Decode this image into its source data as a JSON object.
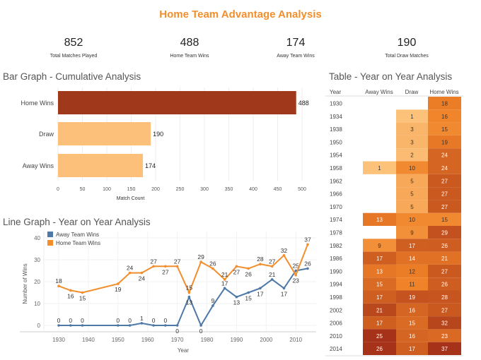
{
  "title": "Home Team Advantage Analysis",
  "kpis": [
    {
      "value": "852",
      "label": "Total Matches Played"
    },
    {
      "value": "488",
      "label": "Home Team Wins"
    },
    {
      "value": "174",
      "label": "Away Team Wins"
    },
    {
      "value": "190",
      "label": "Total Draw Matches"
    }
  ],
  "sections": {
    "bar": "Bar Graph - Cumulative Analysis",
    "table": "Table - Year on Year Analysis",
    "line": "Line Graph - Year on Year Analysis"
  },
  "colors": {
    "accent": "#f28e2b",
    "home_bar": "#a0381b",
    "light_bar": "#fdc07a",
    "away_line": "#4e79a7",
    "home_line": "#f28e2b"
  },
  "chart_data": [
    {
      "type": "bar",
      "orientation": "horizontal",
      "categories": [
        "Home Wins",
        "Draw",
        "Away Wins"
      ],
      "values": [
        488,
        190,
        174
      ],
      "xlabel": "Match Count",
      "xlim": [
        0,
        500
      ],
      "xticks": [
        0,
        50,
        100,
        150,
        200,
        250,
        300,
        350,
        400,
        450,
        500
      ],
      "grid": true
    },
    {
      "type": "line",
      "x": [
        1930,
        1934,
        1938,
        1950,
        1954,
        1958,
        1962,
        1966,
        1970,
        1974,
        1978,
        1982,
        1986,
        1990,
        1994,
        1998,
        2002,
        2006,
        2010,
        2014
      ],
      "series": [
        {
          "name": "Away Team Wins",
          "values": [
            0,
            0,
            0,
            0,
            0,
            1,
            0,
            0,
            0,
            13,
            0,
            9,
            17,
            13,
            15,
            17,
            21,
            17,
            25,
            26
          ]
        },
        {
          "name": "Home Team Wins",
          "values": [
            18,
            16,
            15,
            19,
            24,
            24,
            27,
            27,
            27,
            15,
            29,
            26,
            21,
            27,
            26,
            28,
            27,
            32,
            23,
            37
          ]
        }
      ],
      "xlabel": "Year",
      "ylabel": "Number of Wins",
      "xticks": [
        1930,
        1940,
        1950,
        1960,
        1970,
        1980,
        1990,
        2000,
        2010
      ],
      "yticks": [
        0,
        10,
        20,
        30,
        40
      ],
      "ylim": [
        -2,
        42
      ],
      "legend": "top-left",
      "grid": true
    },
    {
      "type": "table",
      "columns": [
        "Year",
        "Away Wins",
        "Draw",
        "Home Wins"
      ],
      "rows": [
        [
          "1930",
          "",
          "",
          "18"
        ],
        [
          "1934",
          "",
          "1",
          "16"
        ],
        [
          "1938",
          "",
          "3",
          "15"
        ],
        [
          "1950",
          "",
          "3",
          "19"
        ],
        [
          "1954",
          "",
          "2",
          "24"
        ],
        [
          "1958",
          "1",
          "10",
          "24"
        ],
        [
          "1962",
          "",
          "5",
          "27"
        ],
        [
          "1966",
          "",
          "5",
          "27"
        ],
        [
          "1970",
          "",
          "5",
          "27"
        ],
        [
          "1974",
          "13",
          "10",
          "15"
        ],
        [
          "1978",
          "",
          "9",
          "29"
        ],
        [
          "1982",
          "9",
          "17",
          "26"
        ],
        [
          "1986",
          "17",
          "14",
          "21"
        ],
        [
          "1990",
          "13",
          "12",
          "27"
        ],
        [
          "1994",
          "15",
          "11",
          "26"
        ],
        [
          "1998",
          "17",
          "19",
          "28"
        ],
        [
          "2002",
          "21",
          "16",
          "27"
        ],
        [
          "2006",
          "17",
          "15",
          "32"
        ],
        [
          "2010",
          "25",
          "16",
          "23"
        ],
        [
          "2014",
          "26",
          "17",
          "37"
        ]
      ]
    }
  ]
}
